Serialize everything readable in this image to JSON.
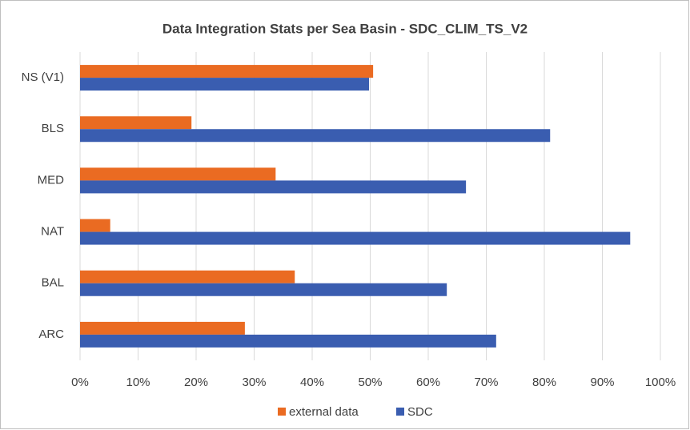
{
  "chart_data": {
    "type": "bar",
    "orientation": "horizontal",
    "title": "Data Integration Stats per Sea Basin - SDC_CLIM_TS_V2",
    "categories": [
      "NS (V1)",
      "BLS",
      "MED",
      "NAT",
      "BAL",
      "ARC"
    ],
    "series": [
      {
        "name": "external data",
        "color": "#ea6b22",
        "values": [
          50.5,
          19.2,
          33.7,
          5.2,
          37,
          28.4
        ]
      },
      {
        "name": "SDC",
        "color": "#3a5db0",
        "values": [
          49.8,
          81,
          66.5,
          94.8,
          63.2,
          71.7
        ]
      }
    ],
    "xlim": [
      0,
      100
    ],
    "xticks": [
      {
        "value": 0,
        "label": "0%"
      },
      {
        "value": 10,
        "label": "10%"
      },
      {
        "value": 20,
        "label": "20%"
      },
      {
        "value": 30,
        "label": "30%"
      },
      {
        "value": 40,
        "label": "40%"
      },
      {
        "value": 50,
        "label": "50%"
      },
      {
        "value": 60,
        "label": "60%"
      },
      {
        "value": 70,
        "label": "70%"
      },
      {
        "value": 80,
        "label": "80%"
      },
      {
        "value": 90,
        "label": "90%"
      },
      {
        "value": 100,
        "label": "100%"
      }
    ],
    "grid": true,
    "legend": "bottom"
  }
}
